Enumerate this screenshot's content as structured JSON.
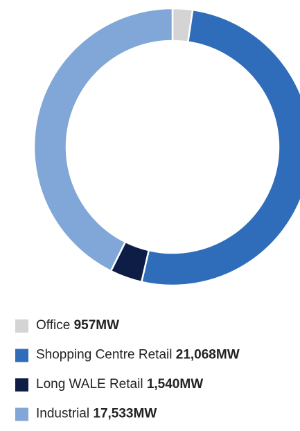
{
  "chart_data": {
    "type": "donut",
    "categories": [
      "Office",
      "Shopping Centre Retail",
      "Long WALE Retail",
      "Industrial"
    ],
    "values": [
      957,
      21068,
      1540,
      17533
    ],
    "value_labels": [
      "957MW",
      "21,068MW",
      "1,540MW",
      "17,533MW"
    ],
    "colors": [
      "#d4d4d4",
      "#2f6dbb",
      "#0e1d45",
      "#80a7d7"
    ]
  }
}
